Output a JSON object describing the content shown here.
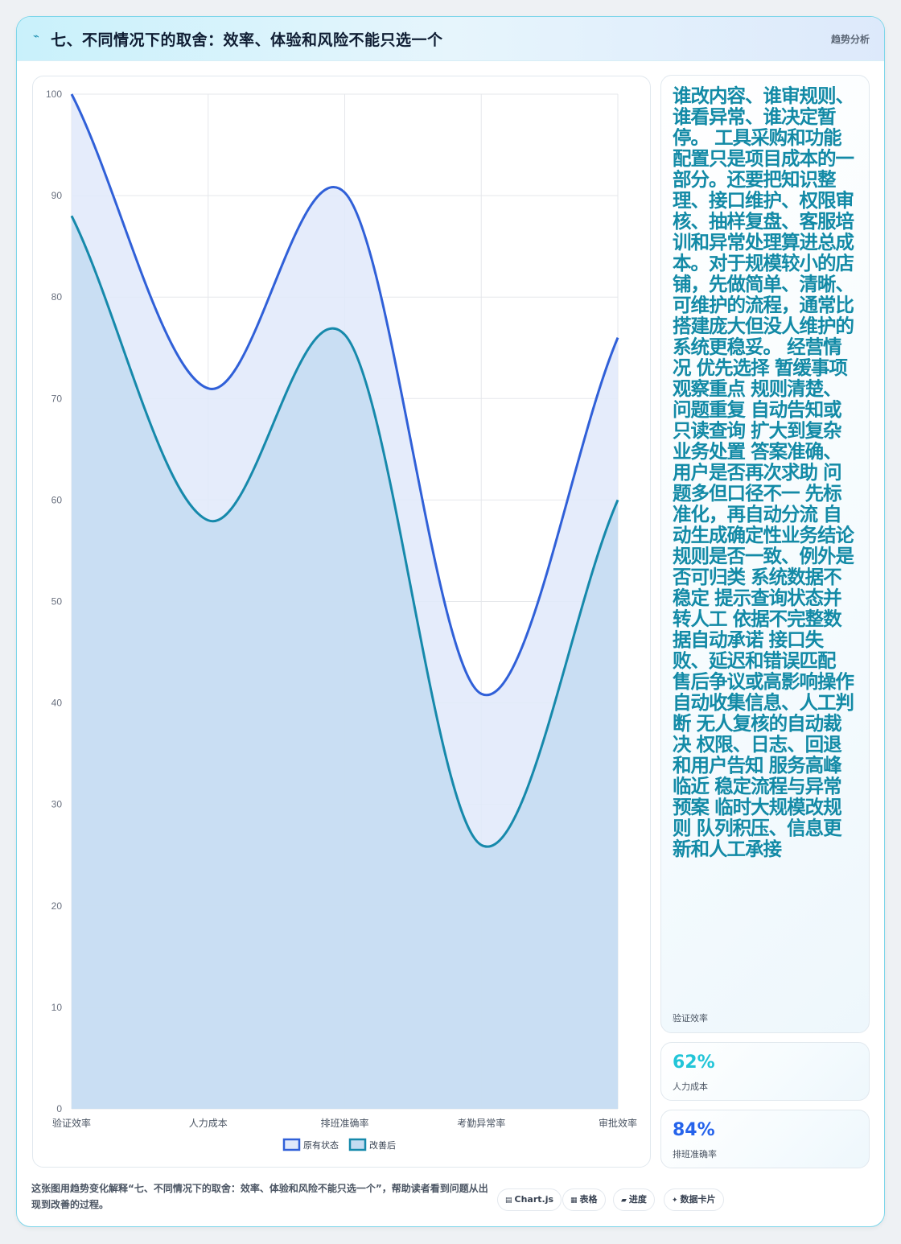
{
  "header": {
    "icon": "chart-trend-icon",
    "title": "七、不同情况下的取舍：效率、体验和风险不能只选一个",
    "tag": "趋势分析"
  },
  "chart_data": {
    "type": "area",
    "categories": [
      "验证效率",
      "人力成本",
      "排班准确率",
      "考勤异常率",
      "审批效率"
    ],
    "series": [
      {
        "name": "原有状态",
        "values": [
          100,
          71,
          90.3,
          40.9,
          76
        ],
        "color": "#3060d8",
        "fill": "#e0e9fa"
      },
      {
        "name": "改善后",
        "values": [
          88,
          58,
          76.3,
          26,
          60
        ],
        "color": "#1689ab",
        "fill": "#c4dcf1"
      }
    ],
    "yticks": [
      "0",
      "10",
      "20",
      "30",
      "40",
      "50",
      "60",
      "70",
      "80",
      "90",
      "100"
    ],
    "ylim": [
      0,
      100
    ],
    "grid": true,
    "legend": "bottom"
  },
  "side": {
    "big_text": "谁改内容、谁审规则、谁看异常、谁决定暂停。 工具采购和功能配置只是项目成本的一部分。还要把知识整理、接口维护、权限审核、抽样复盘、客服培训和异常处理算进总成本。对于规模较小的店铺，先做简单、清晰、可维护的流程，通常比搭建庞大但没人维护的系统更稳妥。 经营情况 优先选择 暂缓事项 观察重点 规则清楚、问题重复 自动告知或只读查询 扩大到复杂业务处置 答案准确、用户是否再次求助 问题多但口径不一 先标准化，再自动分流 自动生成确定性业务结论 规则是否一致、例外是否可归类 系统数据不稳定 提示查询状态并转人工 依据不完整数据自动承诺 接口失败、延迟和错误匹配 售后争议或高影响操作 自动收集信息、人工判断 无人复核的自动裁决 权限、日志、回退和用户告知 服务高峰临近 稳定流程与异常预案 临时大规模改规则 队列积压、信息更新和人工承接",
    "big_label": "验证效率",
    "metric1": "62%",
    "metric1_label": "人力成本",
    "metric2": "84%",
    "metric2_label": "排班准确率"
  },
  "footer": {
    "text": "这张图用趋势变化解释“七、不同情况下的取舍：效率、体验和风险不能只选一个”，帮助读者看到问题从出现到改善的过程。",
    "chips": [
      {
        "icon": "▤",
        "label": "Chart.js"
      },
      {
        "icon": "▦",
        "label": "表格"
      },
      {
        "icon": "▰",
        "label": "进度"
      },
      {
        "icon": "✦",
        "label": "数据卡片"
      }
    ]
  }
}
